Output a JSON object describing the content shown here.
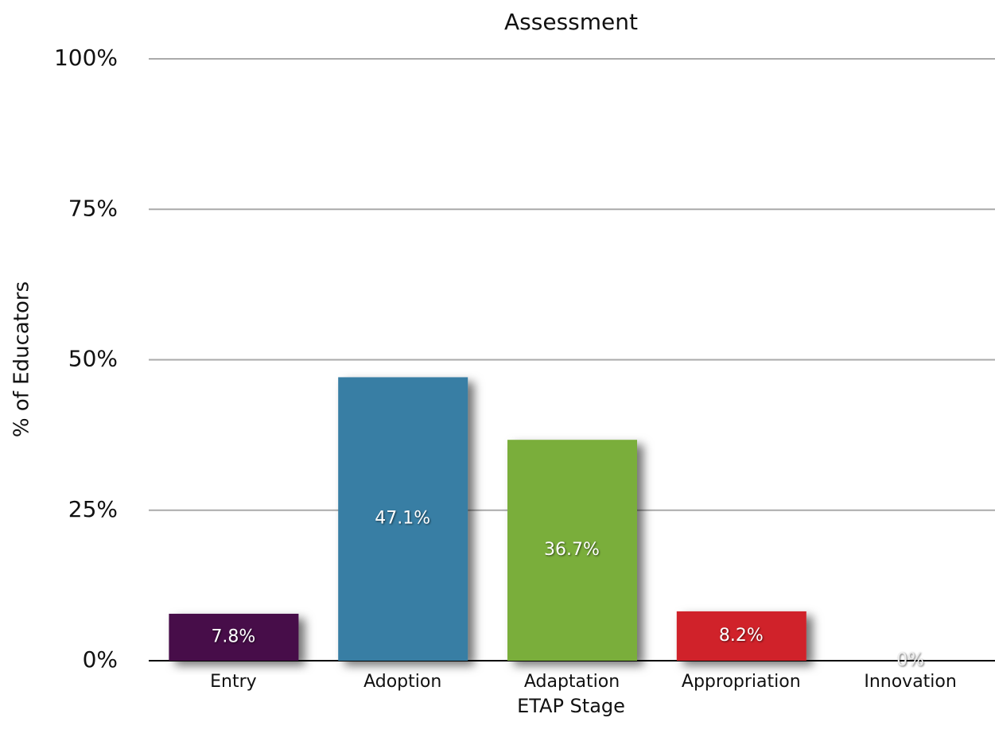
{
  "chart_data": {
    "type": "bar",
    "title": "Assessment",
    "x_label": "ETAP Stage",
    "y_label": "% of Educators",
    "categories": [
      "Entry",
      "Adoption",
      "Adaptation",
      "Appropriation",
      "Innovation"
    ],
    "values": [
      7.8,
      47.1,
      36.7,
      8.2,
      0
    ],
    "value_labels": [
      "7.8%",
      "47.1%",
      "36.7%",
      "8.2%",
      "0%"
    ],
    "colors": [
      "#470a4a",
      "#377ea4",
      "#7aae3a",
      "#d0232b",
      "#999999"
    ],
    "ylim": [
      0,
      100
    ],
    "yticks": [
      {
        "value": 0,
        "label": "0%"
      },
      {
        "value": 25,
        "label": "25%"
      },
      {
        "value": 50,
        "label": "50%"
      },
      {
        "value": 75,
        "label": "75%"
      },
      {
        "value": 100,
        "label": "100%"
      }
    ],
    "grid": true
  }
}
